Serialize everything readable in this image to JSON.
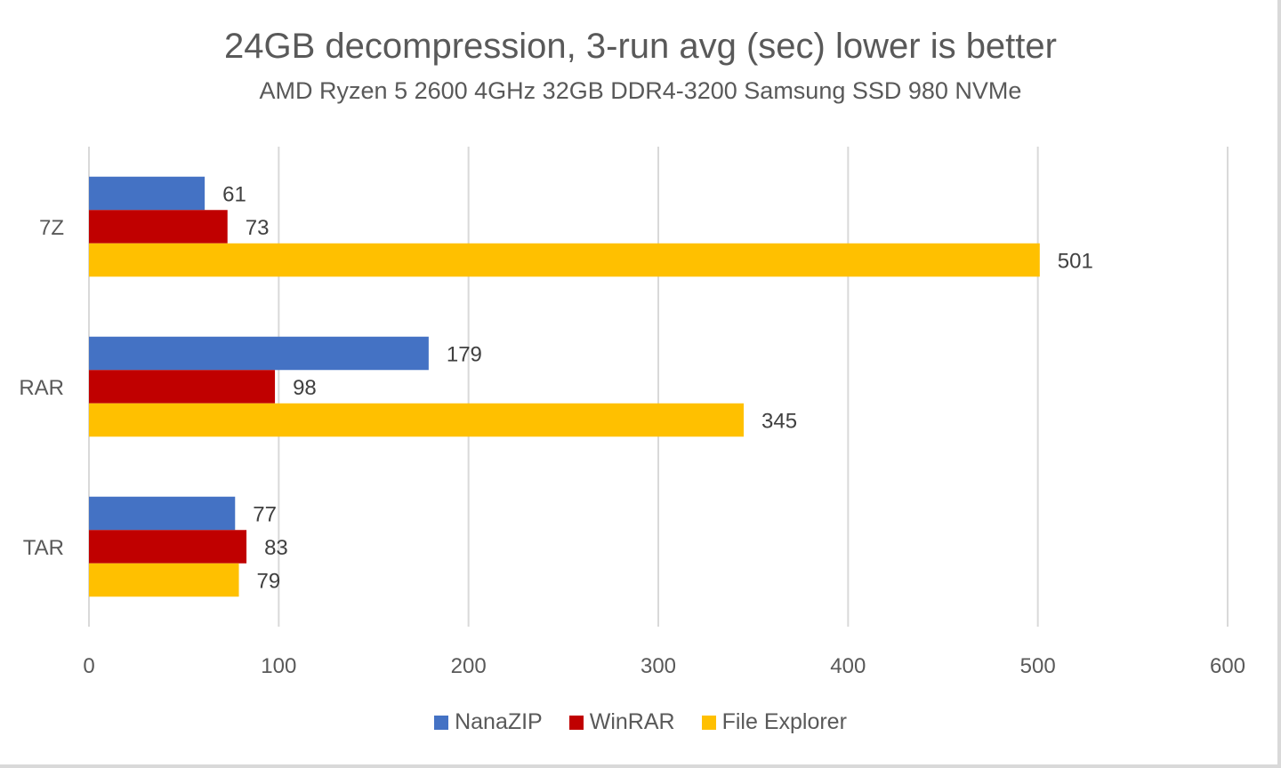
{
  "chart_data": {
    "type": "bar",
    "orientation": "horizontal",
    "title": "24GB decompression, 3-run avg (sec) lower is better",
    "subtitle": "AMD Ryzen 5 2600 4GHz 32GB DDR4-3200 Samsung SSD 980 NVMe",
    "xlabel": "",
    "ylabel": "",
    "xlim": [
      0,
      600
    ],
    "xticks": [
      0,
      100,
      200,
      300,
      400,
      500,
      600
    ],
    "xtick_labels": [
      "0",
      "100",
      "200",
      "300",
      "400",
      "500",
      "600"
    ],
    "grid": "vertical",
    "legend_position": "bottom",
    "categories": [
      "7Z",
      "RAR",
      "TAR"
    ],
    "series": [
      {
        "name": "NanaZIP",
        "color": "#4472c4",
        "values": [
          61,
          179,
          77
        ]
      },
      {
        "name": "WinRAR",
        "color": "#c00000",
        "values": [
          73,
          98,
          83
        ]
      },
      {
        "name": "File Explorer",
        "color": "#ffc000",
        "values": [
          501,
          345,
          79
        ]
      }
    ],
    "data_labels": true
  }
}
